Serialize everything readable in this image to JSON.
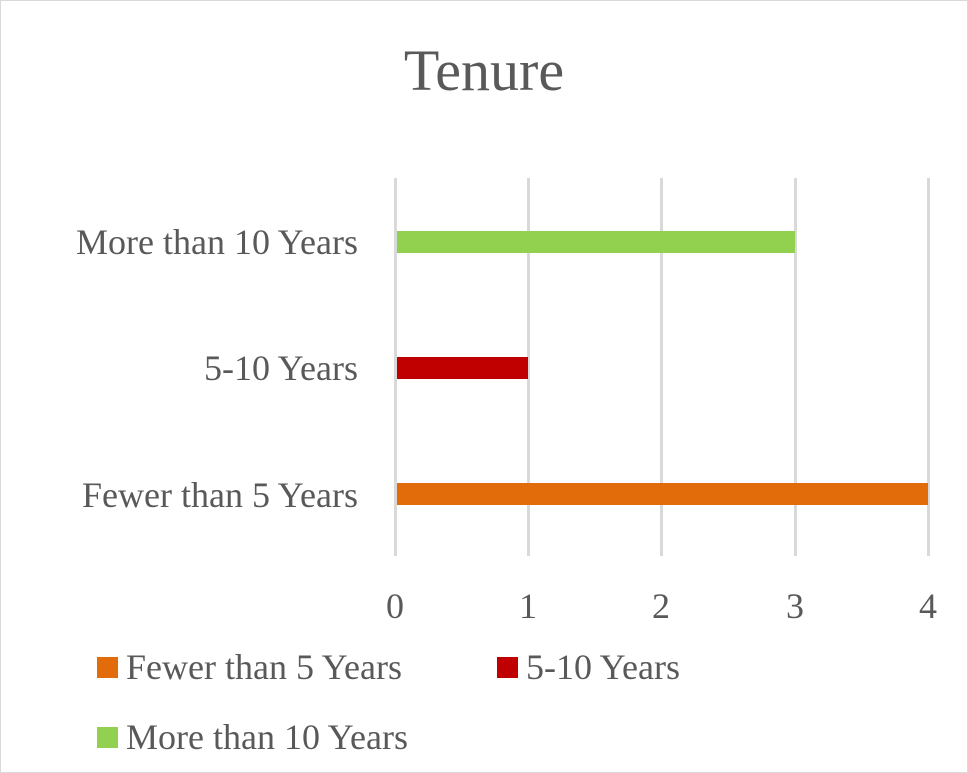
{
  "chart_data": {
    "type": "bar",
    "orientation": "horizontal",
    "title": "Tenure",
    "categories": [
      "Fewer than 5 Years",
      "5-10 Years",
      "More than 10 Years"
    ],
    "values": [
      4,
      1,
      3
    ],
    "series": [
      {
        "name": "Fewer than 5 Years",
        "values": [
          4,
          null,
          null
        ],
        "color": "#E36C0A"
      },
      {
        "name": "5-10 Years",
        "values": [
          null,
          1,
          null
        ],
        "color": "#C00000"
      },
      {
        "name": "More than 10 Years",
        "values": [
          null,
          null,
          3
        ],
        "color": "#92D050"
      }
    ],
    "xlabel": "",
    "ylabel": "",
    "xlim": [
      0,
      4
    ],
    "x_ticks": [
      "0",
      "1",
      "2",
      "3",
      "4"
    ],
    "grid": "vertical",
    "legend_position": "bottom"
  },
  "title": "Tenure",
  "categories": [
    {
      "label": "More than 10 Years",
      "value": 3,
      "color": "#92D050"
    },
    {
      "label": "5-10 Years",
      "value": 1,
      "color": "#C00000"
    },
    {
      "label": "Fewer than 5 Years",
      "value": 4,
      "color": "#E36C0A"
    }
  ],
  "ticks": [
    "0",
    "1",
    "2",
    "3",
    "4"
  ],
  "legend": [
    {
      "label": "Fewer than 5 Years",
      "color": "#E36C0A"
    },
    {
      "label": "5-10 Years",
      "color": "#C00000"
    },
    {
      "label": "More than 10 Years",
      "color": "#92D050"
    }
  ]
}
